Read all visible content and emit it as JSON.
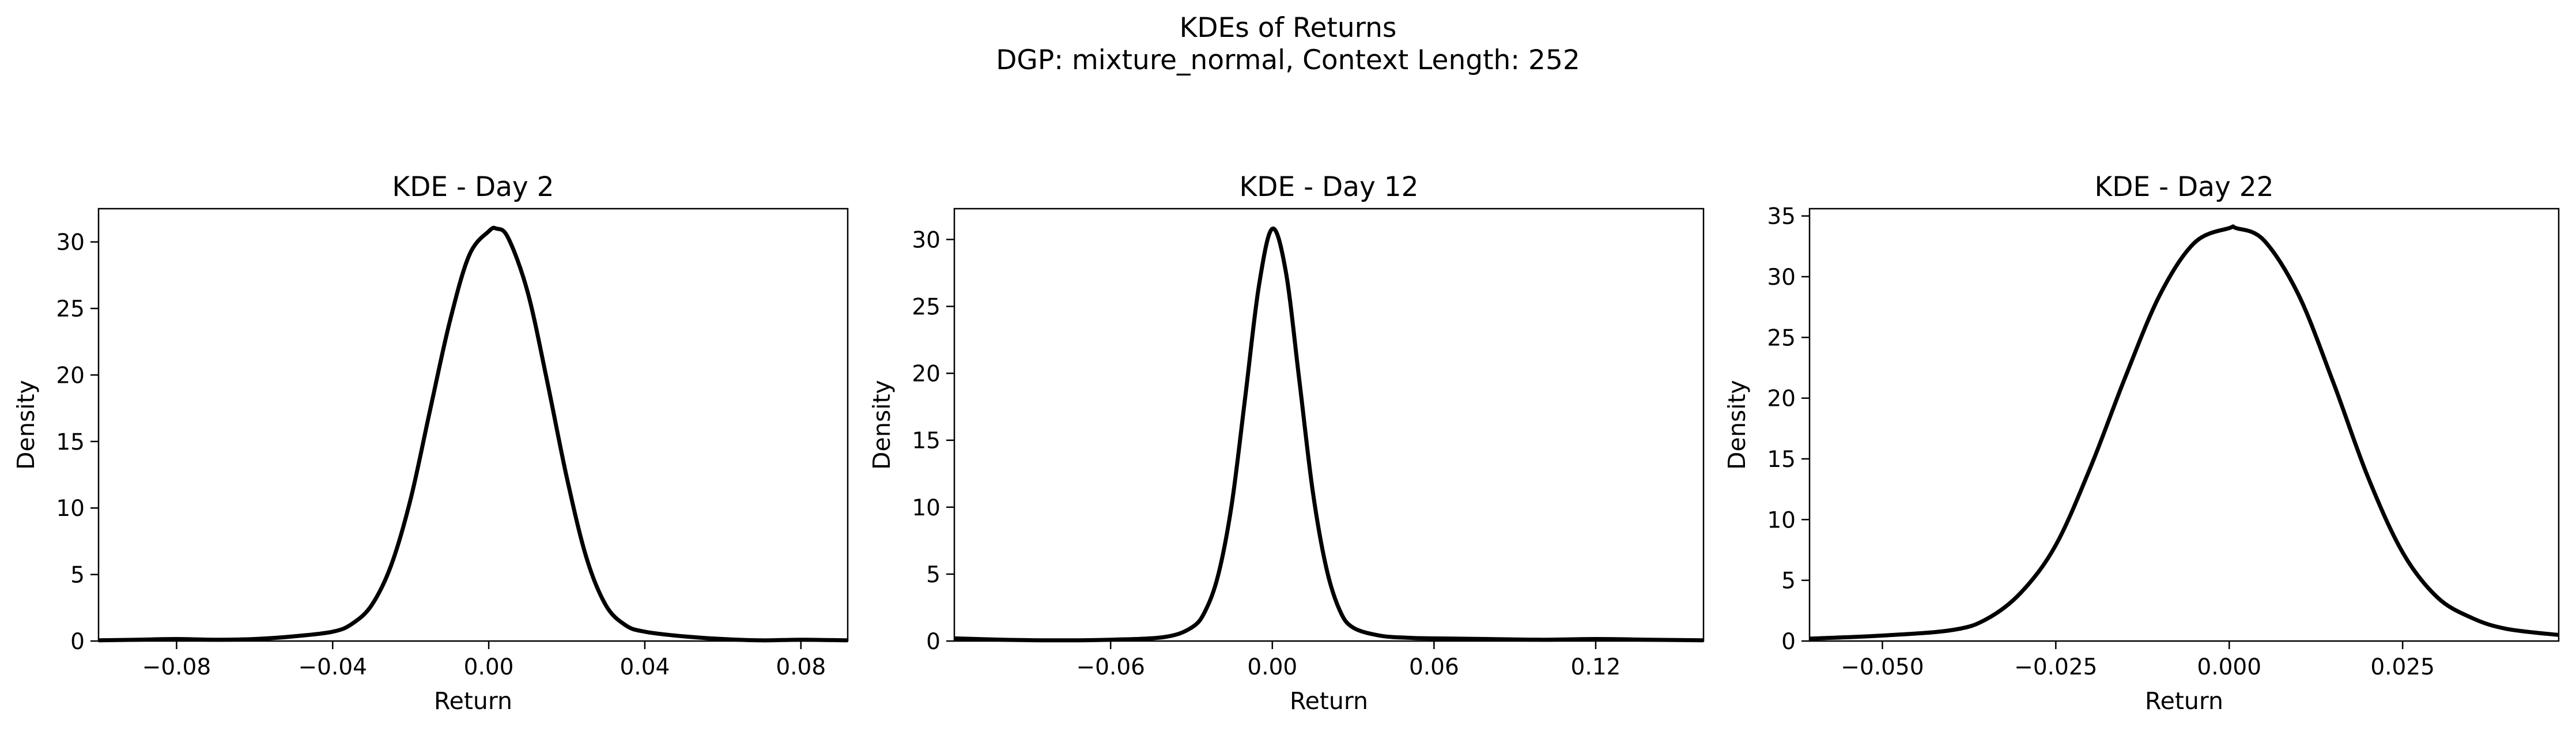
{
  "figure": {
    "suptitle_line1": "KDEs of Returns",
    "suptitle_line2": "DGP: mixture_normal, Context Length: 252",
    "line_color": "#000000",
    "background": "#ffffff"
  },
  "chart_data": [
    {
      "type": "line",
      "title": "KDE - Day 2",
      "xlabel": "Return",
      "ylabel": "Density",
      "xlim": [
        -0.1,
        0.092
      ],
      "ylim": [
        0,
        32.5
      ],
      "xticks": [
        -0.08,
        -0.04,
        0.0,
        0.04,
        0.08
      ],
      "xtick_labels": [
        "−0.08",
        "−0.04",
        "0.00",
        "0.04",
        "0.08"
      ],
      "yticks": [
        0,
        5,
        10,
        15,
        20,
        25,
        30
      ],
      "ytick_labels": [
        "0",
        "5",
        "10",
        "15",
        "20",
        "25",
        "30"
      ],
      "grid": false,
      "series": [
        {
          "x": [
            -0.1,
            -0.09,
            -0.08,
            -0.07,
            -0.06,
            -0.05,
            -0.04,
            -0.035,
            -0.03,
            -0.025,
            -0.02,
            -0.015,
            -0.01,
            -0.005,
            0.0,
            0.002,
            0.005,
            0.01,
            0.015,
            0.02,
            0.025,
            0.03,
            0.035,
            0.04,
            0.05,
            0.06,
            0.07,
            0.08,
            0.092
          ],
          "y": [
            0.05,
            0.1,
            0.15,
            0.1,
            0.15,
            0.35,
            0.7,
            1.3,
            2.7,
            5.7,
            10.7,
            17.4,
            24.0,
            29.0,
            30.8,
            31.0,
            30.3,
            26.2,
            19.5,
            12.3,
            6.3,
            2.7,
            1.2,
            0.7,
            0.35,
            0.15,
            0.05,
            0.1,
            0.05
          ]
        }
      ]
    },
    {
      "type": "line",
      "title": "KDE - Day 12",
      "xlabel": "Return",
      "ylabel": "Density",
      "xlim": [
        -0.118,
        0.16
      ],
      "ylim": [
        0,
        32.3
      ],
      "xticks": [
        -0.06,
        0.0,
        0.06,
        0.12
      ],
      "xtick_labels": [
        "−0.06",
        "0.00",
        "0.06",
        "0.12"
      ],
      "yticks": [
        0,
        5,
        10,
        15,
        20,
        25,
        30
      ],
      "ytick_labels": [
        "0",
        "5",
        "10",
        "15",
        "20",
        "25",
        "30"
      ],
      "grid": false,
      "series": [
        {
          "x": [
            -0.118,
            -0.1,
            -0.08,
            -0.06,
            -0.04,
            -0.03,
            -0.025,
            -0.02,
            -0.015,
            -0.01,
            -0.005,
            0.0,
            0.005,
            0.01,
            0.015,
            0.02,
            0.025,
            0.03,
            0.04,
            0.05,
            0.06,
            0.08,
            0.1,
            0.12,
            0.14,
            0.16
          ],
          "y": [
            0.2,
            0.1,
            0.05,
            0.1,
            0.3,
            1.0,
            2.2,
            5.0,
            10.3,
            18.3,
            26.5,
            30.8,
            27.6,
            19.5,
            11.2,
            5.5,
            2.3,
            1.0,
            0.4,
            0.25,
            0.2,
            0.15,
            0.1,
            0.15,
            0.1,
            0.05
          ]
        }
      ]
    },
    {
      "type": "line",
      "title": "KDE - Day 22",
      "xlabel": "Return",
      "ylabel": "Density",
      "xlim": [
        -0.0605,
        0.0475
      ],
      "ylim": [
        0,
        35.6
      ],
      "xticks": [
        -0.05,
        -0.025,
        0.0,
        0.025
      ],
      "xtick_labels": [
        "−0.050",
        "−0.025",
        "0.000",
        "0.025"
      ],
      "yticks": [
        0,
        5,
        10,
        15,
        20,
        25,
        30,
        35
      ],
      "ytick_labels": [
        "0",
        "5",
        "10",
        "15",
        "20",
        "25",
        "30",
        "35"
      ],
      "grid": false,
      "series": [
        {
          "x": [
            -0.0605,
            -0.05,
            -0.04,
            -0.035,
            -0.03,
            -0.025,
            -0.02,
            -0.015,
            -0.01,
            -0.005,
            0.0,
            0.001,
            0.005,
            0.01,
            0.015,
            0.02,
            0.025,
            0.03,
            0.035,
            0.04,
            0.0475
          ],
          "y": [
            0.2,
            0.45,
            0.9,
            1.8,
            4.0,
            7.9,
            14.3,
            21.7,
            28.5,
            32.8,
            34.0,
            34.0,
            33.0,
            28.5,
            21.3,
            13.5,
            7.3,
            3.6,
            1.9,
            1.0,
            0.5
          ]
        }
      ]
    }
  ]
}
